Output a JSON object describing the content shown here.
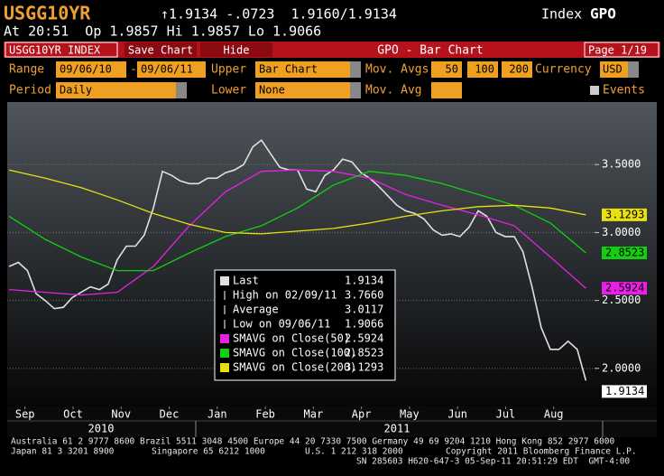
{
  "header": {
    "ticker": "USGG10YR",
    "quote": "↑1.9134 -.0723  1.9160/1.9134",
    "index": "Index",
    "function": "GPO",
    "line2": "At 20:51  Op 1.9857 Hi 1.9857 Lo 1.9066"
  },
  "toolbar": {
    "security": "USGG10YR INDEX",
    "save": "Save Chart",
    "hide": "Hide",
    "title": "GPO - Bar Chart",
    "page": "Page 1/19"
  },
  "controls": {
    "range_label": "Range",
    "start": "09/06/10",
    "dash": "-",
    "end": "09/06/11",
    "upper_label": "Upper",
    "upper": "Bar Chart",
    "mov_avgs_label": "Mov. Avgs",
    "mov_avgs": [
      "50",
      "100",
      "200"
    ],
    "currency_label": "Currency",
    "currency": "USD",
    "period_label": "Period",
    "period": "Daily",
    "lower_label": "Lower",
    "lower": "None",
    "mov_avg_label": "Mov. Avg",
    "events": "Events"
  },
  "chart_data": {
    "type": "line",
    "xlim": [
      0.13,
      12.35
    ],
    "xticks": [
      {
        "value": 0.5,
        "label": "Sep"
      },
      {
        "value": 1.5,
        "label": "Oct"
      },
      {
        "value": 2.5,
        "label": "Nov"
      },
      {
        "value": 3.5,
        "label": "Dec"
      },
      {
        "value": 4.5,
        "label": "Jan"
      },
      {
        "value": 5.5,
        "label": "Feb"
      },
      {
        "value": 6.5,
        "label": "Mar"
      },
      {
        "value": 7.5,
        "label": "Apr"
      },
      {
        "value": 8.5,
        "label": "May"
      },
      {
        "value": 9.5,
        "label": "Jun"
      },
      {
        "value": 10.5,
        "label": "Jul"
      },
      {
        "value": 11.5,
        "label": "Aug"
      }
    ],
    "years": [
      "2010",
      "2011"
    ],
    "ylim": [
      1.72,
      3.96
    ],
    "yticks": [
      {
        "value": 2,
        "label": "2.0000"
      },
      {
        "value": 2.5,
        "label": "2.5000"
      },
      {
        "value": 3,
        "label": "3.0000"
      },
      {
        "value": 3.5,
        "label": "3.5000"
      }
    ],
    "grid": true,
    "series": [
      {
        "name": "Last",
        "color": "#e0e0e0",
        "last_label": "1.9134",
        "x": [
          0.17,
          0.36,
          0.55,
          0.73,
          0.92,
          1.11,
          1.3,
          1.48,
          1.67,
          1.86,
          2.05,
          2.23,
          2.42,
          2.61,
          2.8,
          2.98,
          3.17,
          3.36,
          3.55,
          3.73,
          3.92,
          4.11,
          4.3,
          4.49,
          4.67,
          4.86,
          5.05,
          5.24,
          5.42,
          5.61,
          5.8,
          5.99,
          6.17,
          6.36,
          6.55,
          6.74,
          6.92,
          7.11,
          7.3,
          7.49,
          7.67,
          7.86,
          8.05,
          8.24,
          8.42,
          8.61,
          8.8,
          8.99,
          9.18,
          9.36,
          9.55,
          9.74,
          9.93,
          10.11,
          10.3,
          10.49,
          10.68,
          10.86,
          11.05,
          11.24,
          11.43,
          11.61,
          11.8,
          11.99,
          12.17
        ],
        "values": [
          2.75,
          2.78,
          2.72,
          2.55,
          2.5,
          2.44,
          2.45,
          2.52,
          2.56,
          2.6,
          2.58,
          2.62,
          2.8,
          2.9,
          2.9,
          2.98,
          3.18,
          3.45,
          3.42,
          3.38,
          3.36,
          3.36,
          3.4,
          3.4,
          3.44,
          3.46,
          3.5,
          3.63,
          3.68,
          3.58,
          3.48,
          3.46,
          3.46,
          3.32,
          3.3,
          3.42,
          3.46,
          3.54,
          3.52,
          3.44,
          3.4,
          3.34,
          3.27,
          3.2,
          3.16,
          3.14,
          3.1,
          3.02,
          2.98,
          2.99,
          2.97,
          3.04,
          3.16,
          3.12,
          3.0,
          2.97,
          2.97,
          2.86,
          2.6,
          2.3,
          2.14,
          2.14,
          2.2,
          2.14,
          1.91
        ]
      },
      {
        "name": "SMAVG on Close(50)",
        "color": "#e820e8",
        "last_label": "2.5924",
        "x": [
          0.17,
          0.92,
          1.67,
          2.42,
          3.17,
          3.92,
          4.67,
          5.42,
          6.17,
          6.92,
          7.67,
          8.42,
          9.18,
          9.93,
          10.68,
          11.43,
          12.17
        ],
        "values": [
          2.58,
          2.56,
          2.54,
          2.56,
          2.75,
          3.05,
          3.3,
          3.45,
          3.46,
          3.45,
          3.4,
          3.28,
          3.2,
          3.13,
          3.05,
          2.82,
          2.59
        ]
      },
      {
        "name": "SMAVG on Close(100)",
        "color": "#10d010",
        "last_label": "2.8523",
        "x": [
          0.17,
          0.92,
          1.67,
          2.42,
          3.17,
          3.92,
          4.67,
          5.42,
          6.17,
          6.92,
          7.67,
          8.42,
          9.18,
          9.93,
          10.68,
          11.43,
          12.17
        ],
        "values": [
          3.12,
          2.95,
          2.82,
          2.72,
          2.72,
          2.85,
          2.97,
          3.05,
          3.18,
          3.35,
          3.45,
          3.42,
          3.36,
          3.28,
          3.2,
          3.07,
          2.85
        ]
      },
      {
        "name": "SMAVG on Close(200)",
        "color": "#e8e010",
        "last_label": "3.1293",
        "x": [
          0.17,
          0.92,
          1.67,
          2.42,
          3.17,
          3.92,
          4.67,
          5.42,
          6.17,
          6.92,
          7.67,
          8.42,
          9.18,
          9.93,
          10.68,
          11.43,
          12.17
        ],
        "values": [
          3.46,
          3.4,
          3.33,
          3.24,
          3.14,
          3.06,
          3.0,
          2.99,
          3.01,
          3.03,
          3.07,
          3.12,
          3.16,
          3.19,
          3.2,
          3.18,
          3.13
        ]
      }
    ],
    "stats": [
      {
        "label": "High on 02/09/11",
        "value": "3.7660"
      },
      {
        "label": "Average",
        "value": "3.0117"
      },
      {
        "label": "Low on 09/06/11",
        "value": "1.9066"
      }
    ]
  },
  "footer": {
    "line1": "Australia 61 2 9777 8600 Brazil 5511 3048 4500 Europe 44 20 7330 7500 Germany 49 69 9204 1210 Hong Kong 852 2977 6000",
    "japan": "Japan 81 3 3201 8900",
    "singapore": "Singapore 65 6212 1000",
    "us": "U.S. 1 212 318 2000",
    "copyright": "Copyright 2011 Bloomberg Finance L.P.",
    "line3": "SN 285603 H620-647-3 05-Sep-11 20:51:29 EDT  GMT-4:00"
  }
}
